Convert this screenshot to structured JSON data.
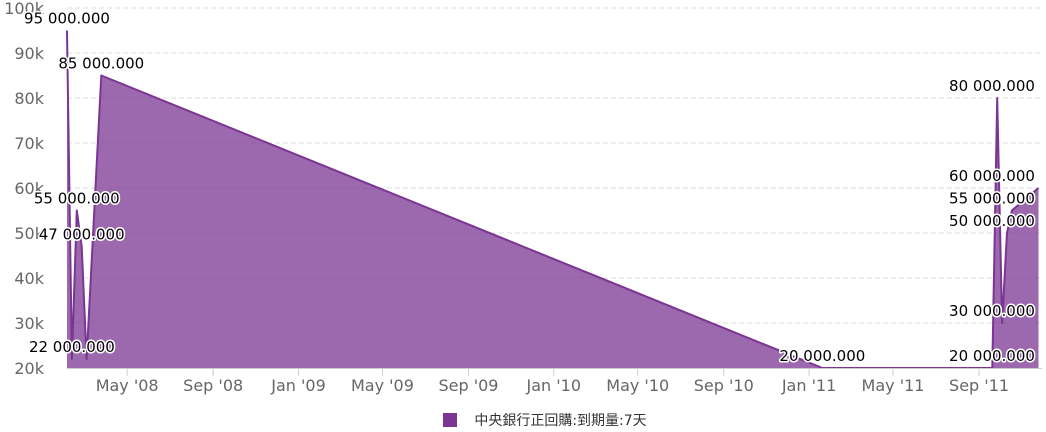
{
  "chart_data": {
    "type": "area",
    "title": "",
    "xlabel": "",
    "ylabel": "",
    "ylim": [
      20000,
      100000
    ],
    "y_ticks": [
      20000,
      30000,
      40000,
      50000,
      60000,
      70000,
      80000,
      90000,
      100000
    ],
    "y_tick_labels": [
      "20k",
      "30k",
      "40k",
      "50k",
      "60k",
      "70k",
      "80k",
      "90k",
      "100k"
    ],
    "x_ticks": [
      "2008-05-01",
      "2008-09-01",
      "2009-01-01",
      "2009-05-01",
      "2009-09-01",
      "2010-01-01",
      "2010-05-01",
      "2010-09-01",
      "2011-01-01",
      "2011-05-01",
      "2011-09-01"
    ],
    "x_tick_labels": [
      "May '08",
      "Sep '08",
      "Jan '09",
      "May '09",
      "Sep '09",
      "Jan '10",
      "May '10",
      "Sep '10",
      "Jan '11",
      "May '11",
      "Sep '11"
    ],
    "xlim": [
      "2008-02-05",
      "2011-11-30"
    ],
    "grid": "horizontal dashed",
    "legend_position": "bottom",
    "series": [
      {
        "name": "中央銀行正回購:到期量:7天",
        "color": "#7b3593",
        "x": [
          "2008-02-05",
          "2008-02-12",
          "2008-02-19",
          "2008-02-26",
          "2008-03-04",
          "2008-03-25",
          "2011-01-20",
          "2011-09-15",
          "2011-09-20",
          "2011-09-27",
          "2011-10-04",
          "2011-10-11",
          "2011-10-18",
          "2011-11-25"
        ],
        "values": [
          95000,
          22000,
          55000,
          47000,
          22000,
          85000,
          20000,
          20000,
          20000,
          80000,
          30000,
          50000,
          55000,
          60000
        ]
      }
    ],
    "data_labels": [
      {
        "date": "2008-02-05",
        "value": 95000,
        "text": "95 000.000"
      },
      {
        "date": "2008-03-25",
        "value": 85000,
        "text": "85 000.000"
      },
      {
        "date": "2008-02-19",
        "value": 55000,
        "text": "55 000.000"
      },
      {
        "date": "2008-02-26",
        "value": 47000,
        "text": "47 000.000"
      },
      {
        "date": "2008-02-12",
        "value": 22000,
        "text": "22 000.000"
      },
      {
        "date": "2011-01-20",
        "value": 20000,
        "text": "20 000.000"
      },
      {
        "date": "2011-09-27",
        "value": 80000,
        "text": "80 000.000"
      },
      {
        "date": "2011-11-25",
        "value": 60000,
        "text": "60 000.000"
      },
      {
        "date": "2011-10-18",
        "value": 55000,
        "text": "55 000.000"
      },
      {
        "date": "2011-10-11",
        "value": 50000,
        "text": "50 000.000"
      },
      {
        "date": "2011-10-04",
        "value": 30000,
        "text": "30 000.000"
      },
      {
        "date": "2011-09-20",
        "value": 20000,
        "text": "20 000.000"
      }
    ]
  },
  "legend": {
    "label": "中央銀行正回購:到期量:7天",
    "color": "#7b3593"
  }
}
